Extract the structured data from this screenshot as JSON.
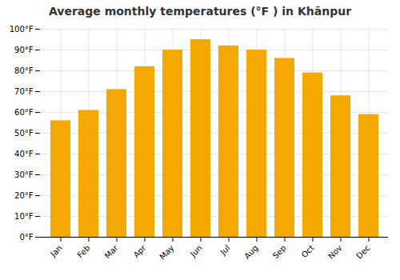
{
  "chart_data": {
    "type": "bar",
    "title": "Average monthly temperatures (°F ) in Khānpur",
    "categories": [
      "Jan",
      "Feb",
      "Mar",
      "Apr",
      "May",
      "Jun",
      "Jul",
      "Aug",
      "Sep",
      "Oct",
      "Nov",
      "Dec"
    ],
    "values": [
      56,
      61,
      71,
      82,
      90,
      95,
      92,
      90,
      86,
      79,
      68,
      59
    ],
    "color": "#F5A800",
    "ylim": [
      0,
      100
    ],
    "yticks": [
      {
        "value": 0,
        "label": "0°F"
      },
      {
        "value": 10,
        "label": "10°F"
      },
      {
        "value": 20,
        "label": "20°F"
      },
      {
        "value": 30,
        "label": "30°F"
      },
      {
        "value": 40,
        "label": "40°F"
      },
      {
        "value": 50,
        "label": "50°F"
      },
      {
        "value": 60,
        "label": "60°F"
      },
      {
        "value": 70,
        "label": "70°F"
      },
      {
        "value": 80,
        "label": "80°F"
      },
      {
        "value": 90,
        "label": "90°F"
      },
      {
        "value": 100,
        "label": "100°F"
      }
    ],
    "grid": true
  }
}
